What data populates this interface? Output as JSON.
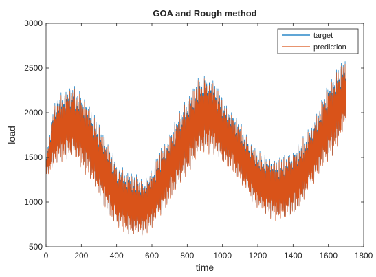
{
  "chart_data": {
    "type": "line",
    "title": "GOA and Rough method",
    "xlabel": "time",
    "ylabel": "load",
    "xlim": [
      0,
      1800
    ],
    "ylim": [
      500,
      3000
    ],
    "xticks": [
      0,
      200,
      400,
      600,
      800,
      1000,
      1200,
      1400,
      1600,
      1800
    ],
    "yticks": [
      500,
      1000,
      1500,
      2000,
      2500,
      3000
    ],
    "grid": false,
    "legend_position": "top-right",
    "series": [
      {
        "name": "target",
        "color": "#0072BD",
        "x": [
          0,
          50,
          100,
          150,
          200,
          250,
          300,
          350,
          400,
          450,
          500,
          550,
          600,
          650,
          700,
          750,
          800,
          850,
          900,
          950,
          1000,
          1050,
          1100,
          1150,
          1200,
          1250,
          1300,
          1350,
          1400,
          1450,
          1500,
          1550,
          1600,
          1650,
          1700
        ],
        "upper": [
          1500,
          2200,
          2270,
          2340,
          2240,
          2110,
          1900,
          1700,
          1480,
          1380,
          1350,
          1250,
          1400,
          1620,
          1800,
          2000,
          2200,
          2380,
          2500,
          2400,
          2200,
          2050,
          1900,
          1720,
          1600,
          1530,
          1500,
          1550,
          1590,
          1720,
          1880,
          2100,
          2350,
          2550,
          2630
        ],
        "lower": [
          1270,
          1400,
          1450,
          1500,
          1360,
          1250,
          1050,
          850,
          700,
          650,
          600,
          620,
          700,
          800,
          1000,
          1150,
          1300,
          1450,
          1550,
          1520,
          1420,
          1350,
          1200,
          1050,
          900,
          850,
          780,
          790,
          850,
          950,
          1150,
          1300,
          1450,
          1600,
          1850
        ]
      },
      {
        "name": "prediction",
        "color": "#D95319",
        "x": [
          0,
          50,
          100,
          150,
          200,
          250,
          300,
          350,
          400,
          450,
          500,
          550,
          600,
          650,
          700,
          750,
          800,
          850,
          900,
          950,
          1000,
          1050,
          1100,
          1150,
          1200,
          1250,
          1300,
          1350,
          1400,
          1450,
          1500,
          1550,
          1600,
          1650,
          1700
        ],
        "upper": [
          1480,
          2170,
          2240,
          2310,
          2210,
          2080,
          1870,
          1680,
          1460,
          1350,
          1320,
          1230,
          1380,
          1600,
          1780,
          1970,
          2170,
          2350,
          2470,
          2370,
          2170,
          2020,
          1870,
          1700,
          1580,
          1510,
          1480,
          1530,
          1570,
          1700,
          1850,
          2080,
          2320,
          2520,
          2600
        ],
        "lower": [
          1260,
          1390,
          1440,
          1490,
          1350,
          1240,
          1040,
          840,
          690,
          640,
          600,
          610,
          690,
          790,
          990,
          1140,
          1290,
          1440,
          1540,
          1510,
          1410,
          1340,
          1190,
          1040,
          890,
          840,
          770,
          780,
          840,
          940,
          1140,
          1290,
          1440,
          1590,
          1840
        ]
      }
    ]
  }
}
